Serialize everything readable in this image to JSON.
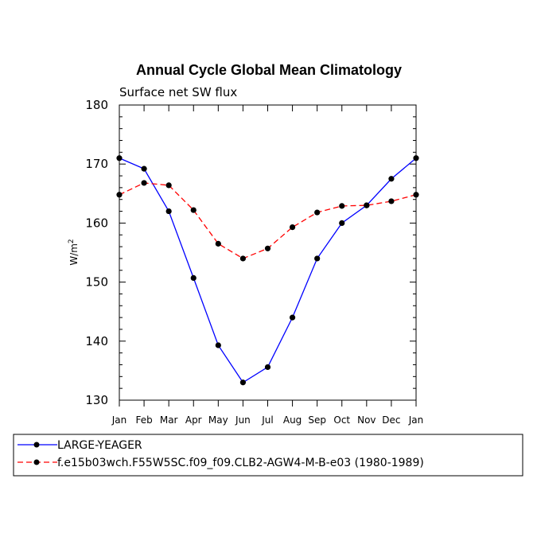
{
  "chart_data": {
    "type": "line",
    "title": "Annual Cycle Global Mean Climatology",
    "subtitle": "Surface net SW flux",
    "ylabel": "W/m",
    "ylabel_sup": "2",
    "ylim": [
      130,
      180
    ],
    "yticks": [
      130,
      140,
      150,
      160,
      170,
      180
    ],
    "categories": [
      "Jan",
      "Feb",
      "Mar",
      "Apr",
      "May",
      "Jun",
      "Jul",
      "Aug",
      "Sep",
      "Oct",
      "Nov",
      "Dec",
      "Jan"
    ],
    "series": [
      {
        "name": "LARGE-YEAGER",
        "color": "#0000ff",
        "dash": "solid",
        "values": [
          171.0,
          169.2,
          162.0,
          150.7,
          139.3,
          133.0,
          135.6,
          144.0,
          154.0,
          160.0,
          163.0,
          167.5,
          171.0
        ]
      },
      {
        "name": "f.e15b03wch.F55W5SC.f09_f09.CLB2-AGW4-M-B-e03 (1980-1989)",
        "color": "#ff0000",
        "dash": "dashed",
        "values": [
          164.8,
          166.8,
          166.4,
          162.2,
          156.5,
          154.0,
          155.7,
          159.3,
          161.8,
          162.9,
          163.0,
          163.7,
          164.8
        ]
      }
    ]
  }
}
